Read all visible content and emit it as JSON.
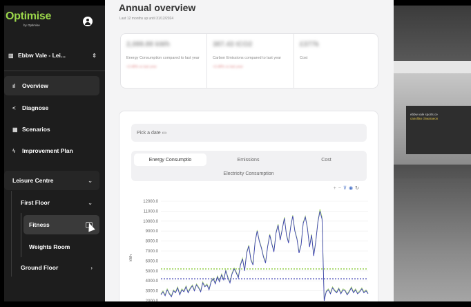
{
  "app": {
    "logo": "Optimise",
    "logo_tagline": "by Optimise"
  },
  "sidebar": {
    "site": "Ebbw Vale - Lei...",
    "nav": [
      {
        "label": "Overview",
        "icon": "bar-chart-icon"
      },
      {
        "label": "Diagnose",
        "icon": "share-icon"
      },
      {
        "label": "Scenarios",
        "icon": "grid-icon"
      },
      {
        "label": "Improvement Plan",
        "icon": "bolt-icon"
      }
    ],
    "tree": {
      "building": "Leisure Centre",
      "floor1": "First Floor",
      "room1": "Fitness",
      "room2": "Weights Room",
      "floor0": "Ground Floor"
    }
  },
  "main": {
    "title": "Annual overview",
    "subtitle": "Last 12 months up until 31/12/2024",
    "stats": [
      {
        "value": "2,088.88 kWh",
        "desc": "Energy Consumption compared to last year",
        "delta": "+3.48% vs last year"
      },
      {
        "value": "387.43 tCO2",
        "desc": "Carbon Emissions compared to last year",
        "delta": "+3.48% vs last year"
      },
      {
        "value": "£377k",
        "desc": "Cost",
        "delta": ""
      }
    ],
    "date_placeholder": "Pick a date",
    "tabs": [
      "Energy Consumptio",
      "Emissions",
      "Cost",
      "Electricity Consumption"
    ],
    "toolbar_icons": [
      "zoom-in-icon",
      "zoom-out-icon",
      "filter-icon",
      "eye-icon",
      "refresh-icon"
    ]
  },
  "colors": {
    "sidebar": "#1d1d1d",
    "accent": "#9bd64a",
    "series1": "#3b3fb3",
    "series2": "#8bcb3c",
    "ref_green": "#8bcb3c",
    "ref_blue": "#3b3fb3"
  },
  "chart_data": {
    "type": "line",
    "ylabel": "kWh",
    "yticks": [
      "12000.0",
      "11000.0",
      "10000.0",
      "9000.0",
      "8000.0",
      "7000.0",
      "6000.0",
      "5000.0",
      "4000.0",
      "3000.0",
      "2000.0"
    ],
    "ylim": [
      2000,
      12000
    ],
    "reference_lines": [
      {
        "value": 5200,
        "color": "#8bcb3c"
      },
      {
        "value": 4200,
        "color": "#3b3fb3"
      }
    ],
    "series": [
      {
        "color": "#3b3fb3",
        "values": [
          2600,
          2900,
          2500,
          3100,
          2700,
          2400,
          3000,
          2800,
          3300,
          2600,
          3100,
          2900,
          3400,
          2800,
          3200,
          3500,
          3000,
          3600,
          3300,
          2900,
          3800,
          3400,
          3600,
          3100,
          3900,
          4200,
          3700,
          4400,
          3900,
          4600,
          4100,
          5000,
          4300,
          3800,
          4700,
          5200,
          4800,
          4300,
          5600,
          6200,
          5000,
          6800,
          7500,
          6100,
          5600,
          7900,
          9000,
          8000,
          7300,
          6400,
          5800,
          7400,
          8600,
          7700,
          6900,
          8800,
          9600,
          8100,
          9200,
          10300,
          8600,
          7800,
          9400,
          10500,
          9000,
          8200,
          6800,
          7600,
          9800,
          10400,
          9300,
          7400,
          8600,
          6500,
          7900,
          9900,
          11000,
          10200,
          2000,
          2900,
          3100,
          2700,
          3300,
          3000,
          2800,
          3200,
          2700,
          3100,
          3000,
          2600,
          2900,
          3300,
          2800,
          3100,
          2700,
          2900,
          3200,
          2800,
          3000,
          2700
        ]
      },
      {
        "color": "#8bcb3c",
        "values": [
          2700,
          3000,
          2600,
          3200,
          2800,
          2500,
          3100,
          2900,
          3400,
          2700,
          3200,
          3000,
          3500,
          2900,
          3300,
          3600,
          3100,
          3700,
          3400,
          3000,
          3900,
          3500,
          3700,
          3200,
          4000,
          4300,
          3800,
          4500,
          4000,
          4700,
          4200,
          5100,
          4400,
          3900,
          4800,
          5300,
          4900,
          4400,
          5700,
          6300,
          5100,
          6900,
          7600,
          6200,
          5700,
          8000,
          9100,
          8100,
          7400,
          6500,
          5900,
          7500,
          8700,
          7800,
          7000,
          8900,
          9700,
          8200,
          9300,
          10400,
          8700,
          7900,
          9500,
          10600,
          9100,
          8300,
          6900,
          7700,
          9900,
          10500,
          9400,
          7500,
          8700,
          6600,
          8000,
          10000,
          11200,
          10400,
          2100,
          3000,
          3200,
          2800,
          3400,
          3100,
          2900,
          3300,
          2800,
          3200,
          3100,
          2700,
          3000,
          3400,
          2900,
          3200,
          2800,
          3000,
          3300,
          2900,
          3100,
          2800
        ]
      }
    ]
  }
}
